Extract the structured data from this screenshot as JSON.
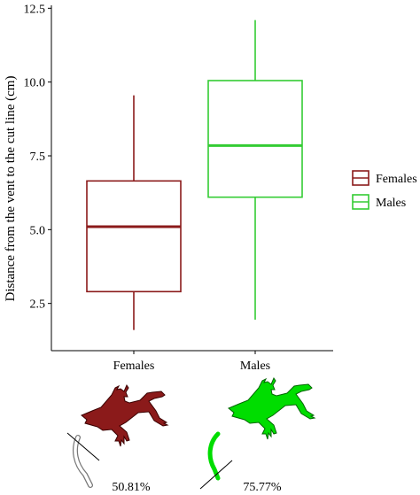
{
  "chart_data": {
    "type": "boxplot",
    "ylabel": "Distance from the vent to the cut line (cm)",
    "xlabel": "",
    "ylim": [
      0.9,
      12.6
    ],
    "yticks": [
      "2.5",
      "5.0",
      "7.5",
      "10.0",
      "12.5"
    ],
    "categories": [
      "Females",
      "Males"
    ],
    "series": [
      {
        "name": "Females",
        "color": "#8b1a1a",
        "min": 1.6,
        "q1": 2.9,
        "median": 5.1,
        "q3": 6.65,
        "max": 9.55
      },
      {
        "name": "Males",
        "color": "#33cc33",
        "min": 1.95,
        "q1": 6.1,
        "median": 7.85,
        "q3": 10.05,
        "max": 12.1
      }
    ],
    "grid": false,
    "legend_position": "right"
  },
  "legend": {
    "items": [
      {
        "label": "Females"
      },
      {
        "label": "Males"
      }
    ]
  },
  "illustrations": [
    {
      "icon": "lizard-icon",
      "color": "#8b1a1a",
      "percent": "50.81%"
    },
    {
      "icon": "lizard-icon",
      "color": "#00dd00",
      "percent": "75.77%"
    }
  ]
}
